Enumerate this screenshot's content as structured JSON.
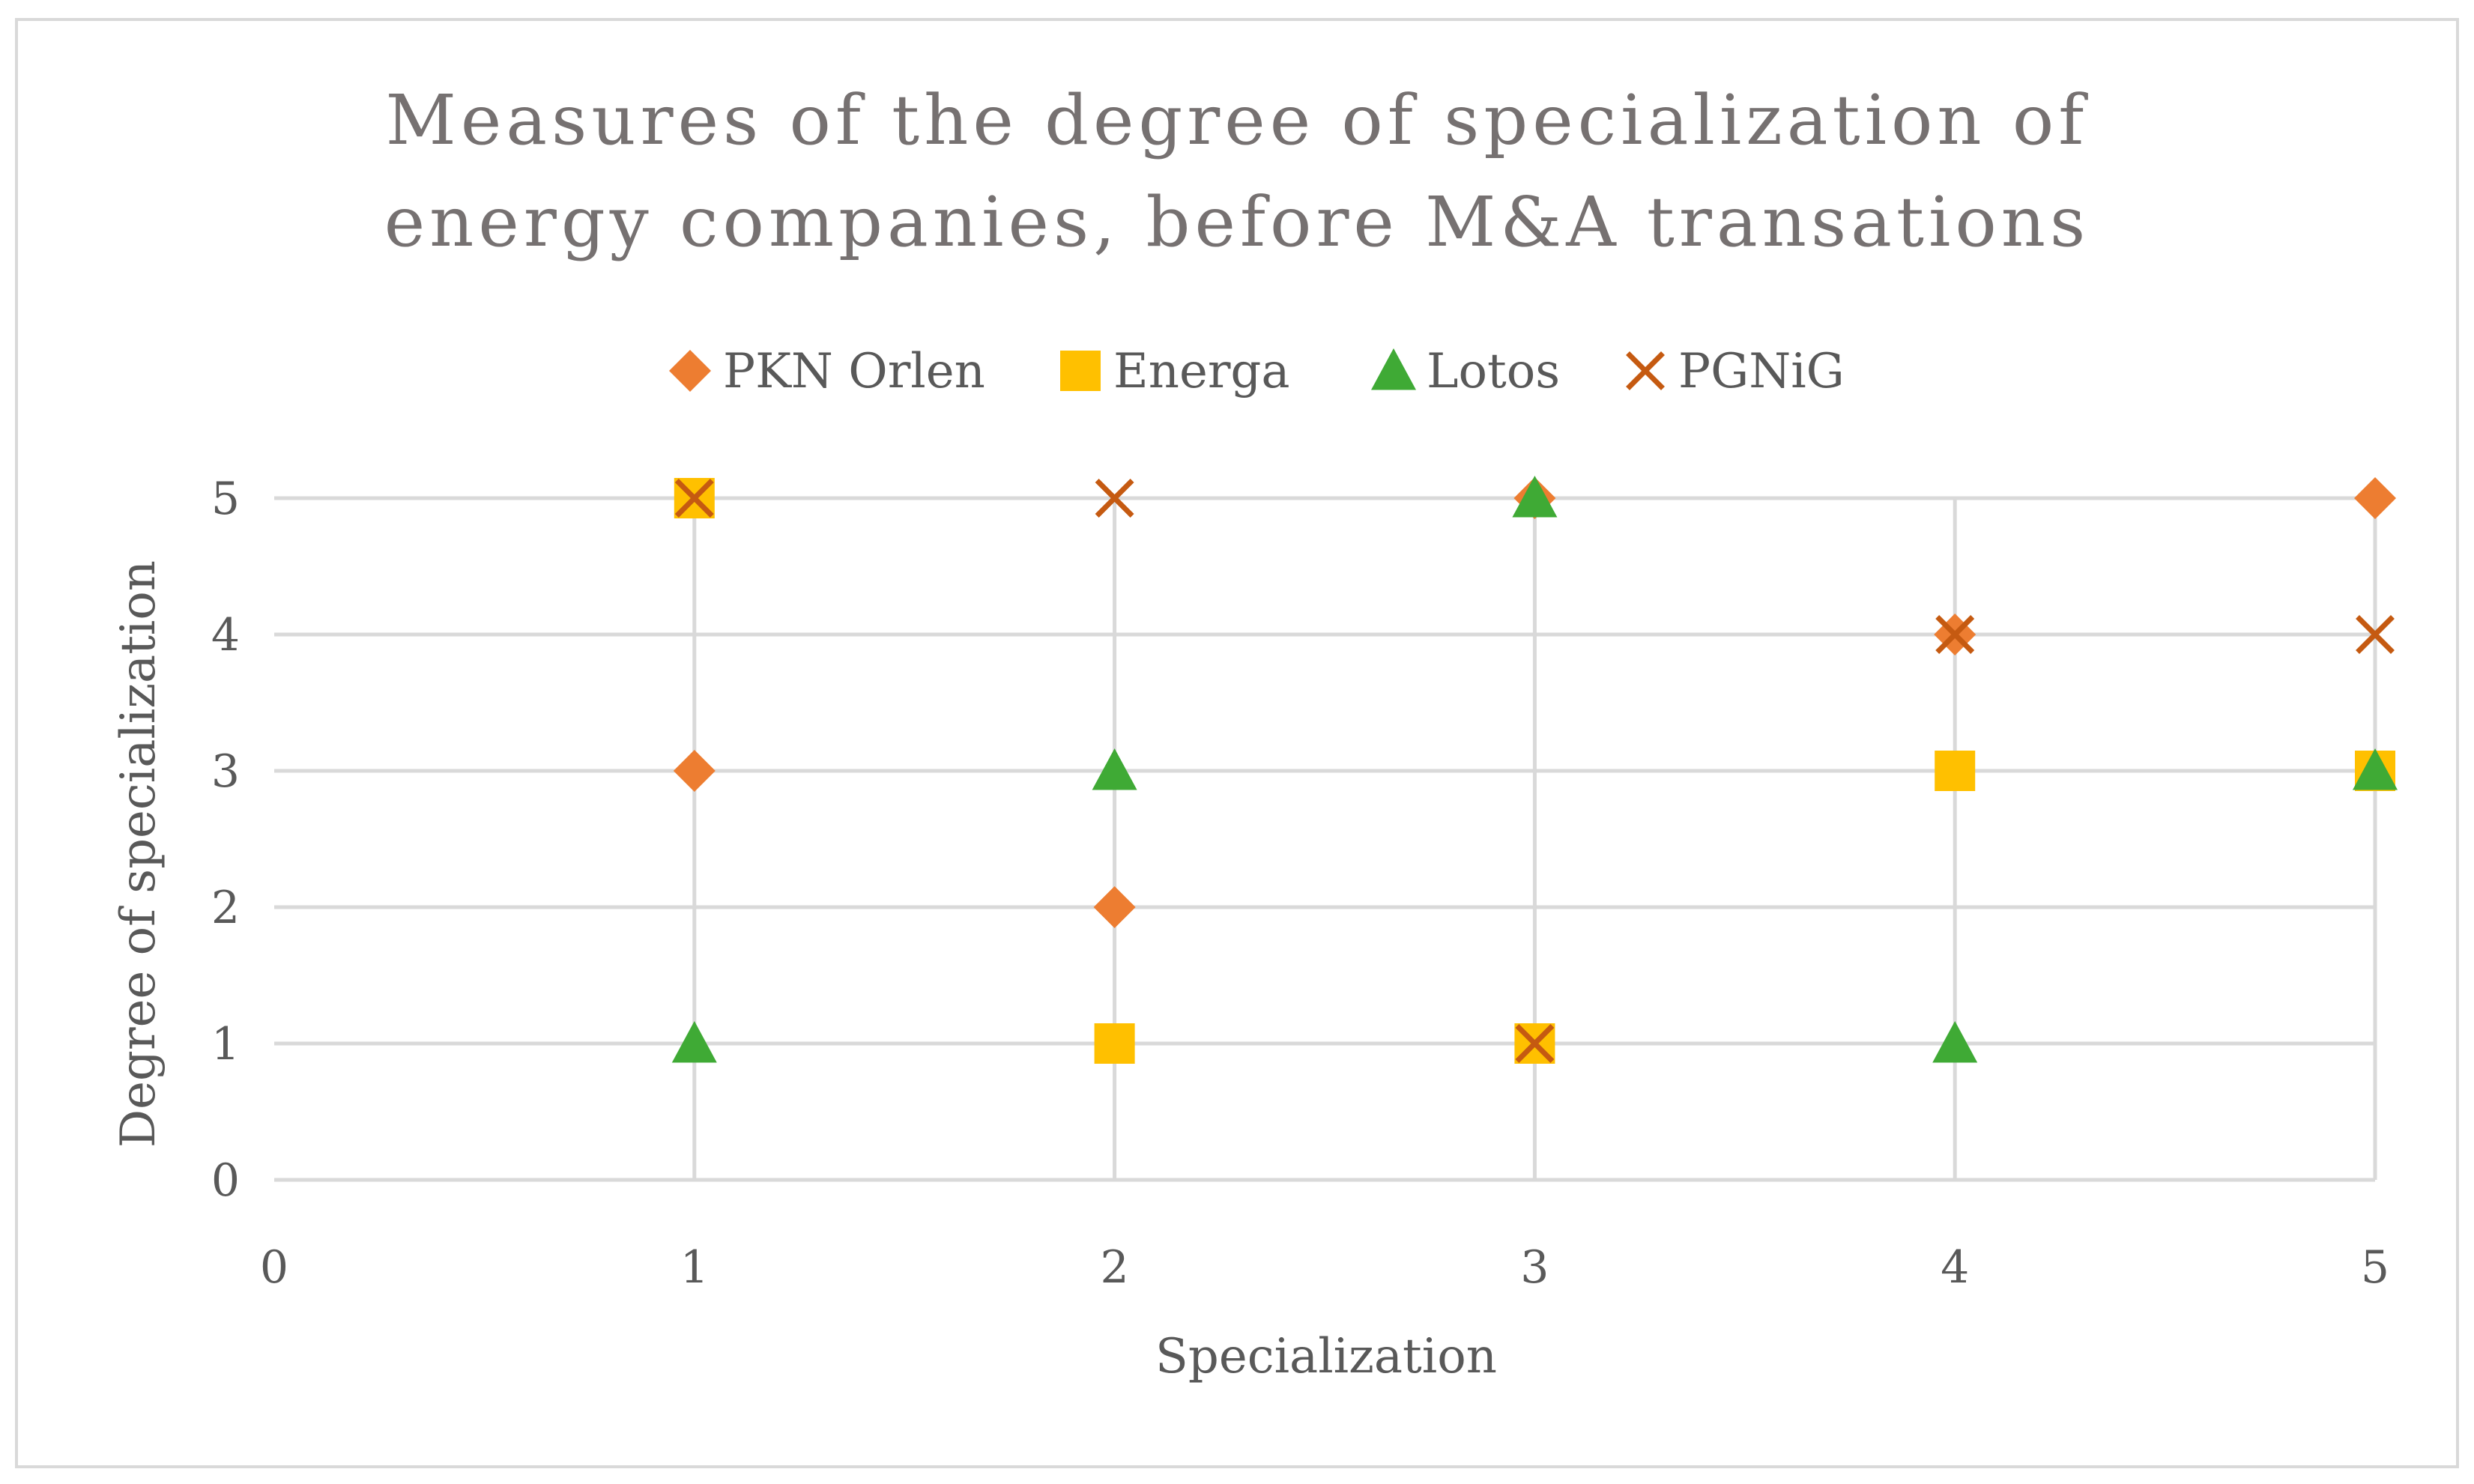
{
  "chart_data": {
    "type": "scatter",
    "title": "Measures of the degree of specialization of energy companies, before M&A transations",
    "title_lines": [
      "Measures of the degree of specialization of",
      "energy companies, before M&A transations"
    ],
    "xlabel": "Specialization",
    "ylabel": "Degree of specialization",
    "xlim": [
      0,
      5
    ],
    "ylim": [
      0,
      5
    ],
    "xticks": [
      "0",
      "1",
      "2",
      "3",
      "4",
      "5"
    ],
    "yticks": [
      "0",
      "1",
      "2",
      "3",
      "4",
      "5"
    ],
    "grid": true,
    "legend_position": "top",
    "series": [
      {
        "name": "PKN Orlen",
        "marker": "diamond",
        "color": "#ED7D31",
        "points": [
          [
            1,
            3
          ],
          [
            2,
            2
          ],
          [
            3,
            5
          ],
          [
            4,
            4
          ],
          [
            5,
            5
          ]
        ]
      },
      {
        "name": "Energa",
        "marker": "square",
        "color": "#FFC000",
        "points": [
          [
            1,
            5
          ],
          [
            2,
            1
          ],
          [
            3,
            1
          ],
          [
            4,
            3
          ],
          [
            5,
            3
          ]
        ]
      },
      {
        "name": "Lotos",
        "marker": "triangle",
        "color": "#3FAA35",
        "points": [
          [
            1,
            1
          ],
          [
            2,
            3
          ],
          [
            3,
            5
          ],
          [
            4,
            1
          ],
          [
            5,
            3
          ]
        ]
      },
      {
        "name": "PGNiG",
        "marker": "x",
        "color": "#C55A11",
        "points": [
          [
            1,
            5
          ],
          [
            2,
            5
          ],
          [
            3,
            1
          ],
          [
            4,
            4
          ],
          [
            5,
            4
          ]
        ]
      }
    ]
  },
  "colors": {
    "gridline": "#d9d9d9",
    "title": "#767171",
    "text": "#595959"
  }
}
